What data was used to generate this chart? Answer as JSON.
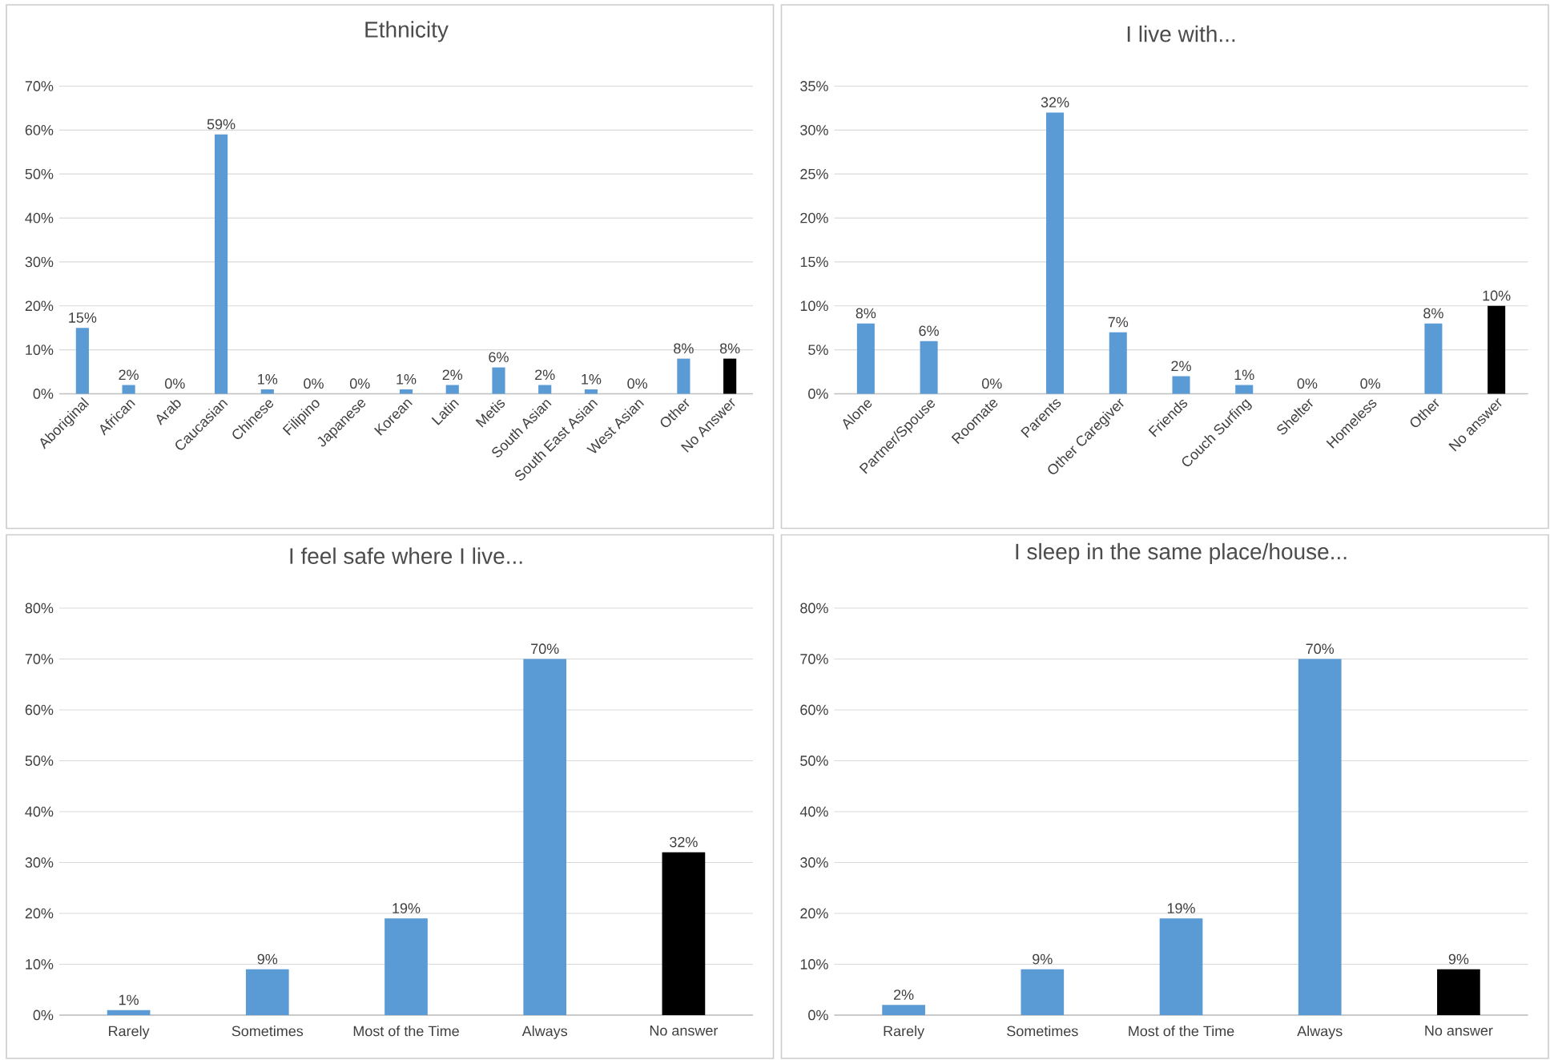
{
  "chart_data": [
    {
      "type": "bar",
      "title": "Ethnicity",
      "categories": [
        "Aboriginal",
        "African",
        "Arab",
        "Caucasian",
        "Chinese",
        "Filipino",
        "Japanese",
        "Korean",
        "Latin",
        "Metis",
        "South Asian",
        "South East Asian",
        "West Asian",
        "Other",
        "No Answer"
      ],
      "values": [
        15,
        2,
        0,
        59,
        1,
        0,
        0,
        1,
        2,
        6,
        2,
        1,
        0,
        8,
        8
      ],
      "value_labels": [
        "15%",
        "2%",
        "0%",
        "59%",
        "1%",
        "0%",
        "0%",
        "1%",
        "2%",
        "6%",
        "2%",
        "1%",
        "0%",
        "8%",
        "8%"
      ],
      "colors": [
        "#5b9bd5",
        "#5b9bd5",
        "#5b9bd5",
        "#5b9bd5",
        "#5b9bd5",
        "#5b9bd5",
        "#5b9bd5",
        "#5b9bd5",
        "#5b9bd5",
        "#5b9bd5",
        "#5b9bd5",
        "#5b9bd5",
        "#5b9bd5",
        "#5b9bd5",
        "#000000"
      ],
      "ylim": [
        0,
        70
      ],
      "yticks": [
        {
          "value": 0,
          "label": "0%"
        },
        {
          "value": 10,
          "label": "10%"
        },
        {
          "value": 20,
          "label": "20%"
        },
        {
          "value": 30,
          "label": "30%"
        },
        {
          "value": 40,
          "label": "40%"
        },
        {
          "value": 50,
          "label": "50%"
        },
        {
          "value": 60,
          "label": "60%"
        },
        {
          "value": 70,
          "label": "70%"
        }
      ],
      "grid": "y"
    },
    {
      "type": "bar",
      "title": "I live with...",
      "categories": [
        "Alone",
        "Partner/Spouse",
        "Roomate",
        "Parents",
        "Other Caregiver",
        "Friends",
        "Couch Surfing",
        "Shelter",
        "Homeless",
        "Other",
        "No answer"
      ],
      "values": [
        8,
        6,
        0,
        32,
        7,
        2,
        1,
        0,
        0,
        8,
        10
      ],
      "value_labels": [
        "8%",
        "6%",
        "0%",
        "32%",
        "7%",
        "2%",
        "1%",
        "0%",
        "0%",
        "8%",
        "10%"
      ],
      "colors": [
        "#5b9bd5",
        "#5b9bd5",
        "#5b9bd5",
        "#5b9bd5",
        "#5b9bd5",
        "#5b9bd5",
        "#5b9bd5",
        "#5b9bd5",
        "#5b9bd5",
        "#5b9bd5",
        "#000000"
      ],
      "ylim": [
        0,
        35
      ],
      "yticks": [
        {
          "value": 0,
          "label": "0%"
        },
        {
          "value": 5,
          "label": "5%"
        },
        {
          "value": 10,
          "label": "10%"
        },
        {
          "value": 15,
          "label": "15%"
        },
        {
          "value": 20,
          "label": "20%"
        },
        {
          "value": 25,
          "label": "25%"
        },
        {
          "value": 30,
          "label": "30%"
        },
        {
          "value": 35,
          "label": "35%"
        }
      ],
      "grid": "y"
    },
    {
      "type": "bar",
      "title": "I feel safe where I live...",
      "categories": [
        "Rarely",
        "Sometimes",
        "Most of the Time",
        "Always",
        "No answer"
      ],
      "values": [
        1,
        9,
        19,
        70,
        32
      ],
      "value_labels": [
        "1%",
        "9%",
        "19%",
        "70%",
        "32%"
      ],
      "colors": [
        "#5b9bd5",
        "#5b9bd5",
        "#5b9bd5",
        "#5b9bd5",
        "#000000"
      ],
      "ylim": [
        0,
        80
      ],
      "yticks": [
        {
          "value": 0,
          "label": "0%"
        },
        {
          "value": 10,
          "label": "10%"
        },
        {
          "value": 20,
          "label": "20%"
        },
        {
          "value": 30,
          "label": "30%"
        },
        {
          "value": 40,
          "label": "40%"
        },
        {
          "value": 50,
          "label": "50%"
        },
        {
          "value": 60,
          "label": "60%"
        },
        {
          "value": 70,
          "label": "70%"
        },
        {
          "value": 80,
          "label": "80%"
        }
      ],
      "grid": "y"
    },
    {
      "type": "bar",
      "title": "I sleep in the same place/house...",
      "categories": [
        "Rarely",
        "Sometimes",
        "Most of the Time",
        "Always",
        "No answer"
      ],
      "values": [
        2,
        9,
        19,
        70,
        9
      ],
      "value_labels": [
        "2%",
        "9%",
        "19%",
        "70%",
        "9%"
      ],
      "colors": [
        "#5b9bd5",
        "#5b9bd5",
        "#5b9bd5",
        "#5b9bd5",
        "#000000"
      ],
      "ylim": [
        0,
        80
      ],
      "yticks": [
        {
          "value": 0,
          "label": "0%"
        },
        {
          "value": 10,
          "label": "10%"
        },
        {
          "value": 20,
          "label": "20%"
        },
        {
          "value": 30,
          "label": "30%"
        },
        {
          "value": 40,
          "label": "40%"
        },
        {
          "value": 50,
          "label": "50%"
        },
        {
          "value": 60,
          "label": "60%"
        },
        {
          "value": 70,
          "label": "70%"
        },
        {
          "value": 80,
          "label": "80%"
        }
      ],
      "grid": "y"
    }
  ]
}
